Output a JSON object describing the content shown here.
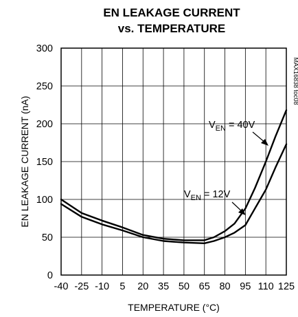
{
  "chart_data": {
    "type": "line",
    "title_lines": [
      "EN LEAKAGE CURRENT",
      "vs. TEMPERATURE"
    ],
    "xlabel": "TEMPERATURE (°C)",
    "ylabel": "EN LEAKAGE CURRENT (nA)",
    "watermark": "MAX16838 toc08",
    "xlim": [
      -40,
      125
    ],
    "ylim": [
      0,
      300
    ],
    "xticks": [
      -40,
      -25,
      -10,
      5,
      20,
      35,
      50,
      65,
      80,
      95,
      110,
      125
    ],
    "yticks": [
      0,
      50,
      100,
      150,
      200,
      250,
      300
    ],
    "grid": true,
    "series": [
      {
        "name": "VEN = 40V",
        "label_main": "V",
        "label_sub": "EN",
        "label_rest": " = 40V",
        "x": [
          -40,
          -25,
          -10,
          5,
          20,
          35,
          50,
          65,
          72,
          80,
          87,
          95,
          102,
          110,
          117,
          125
        ],
        "y": [
          100,
          82,
          72,
          63,
          53,
          48,
          46,
          46,
          50,
          58,
          68,
          88,
          115,
          150,
          183,
          218
        ]
      },
      {
        "name": "VEN = 12V",
        "label_main": "V",
        "label_sub": "EN",
        "label_rest": " = 12V",
        "x": [
          -40,
          -25,
          -10,
          5,
          20,
          35,
          50,
          65,
          72,
          80,
          87,
          95,
          102,
          110,
          117,
          125
        ],
        "y": [
          94,
          77,
          67,
          59,
          50,
          45,
          43,
          42,
          45,
          50,
          56,
          66,
          88,
          113,
          142,
          173
        ]
      }
    ]
  }
}
